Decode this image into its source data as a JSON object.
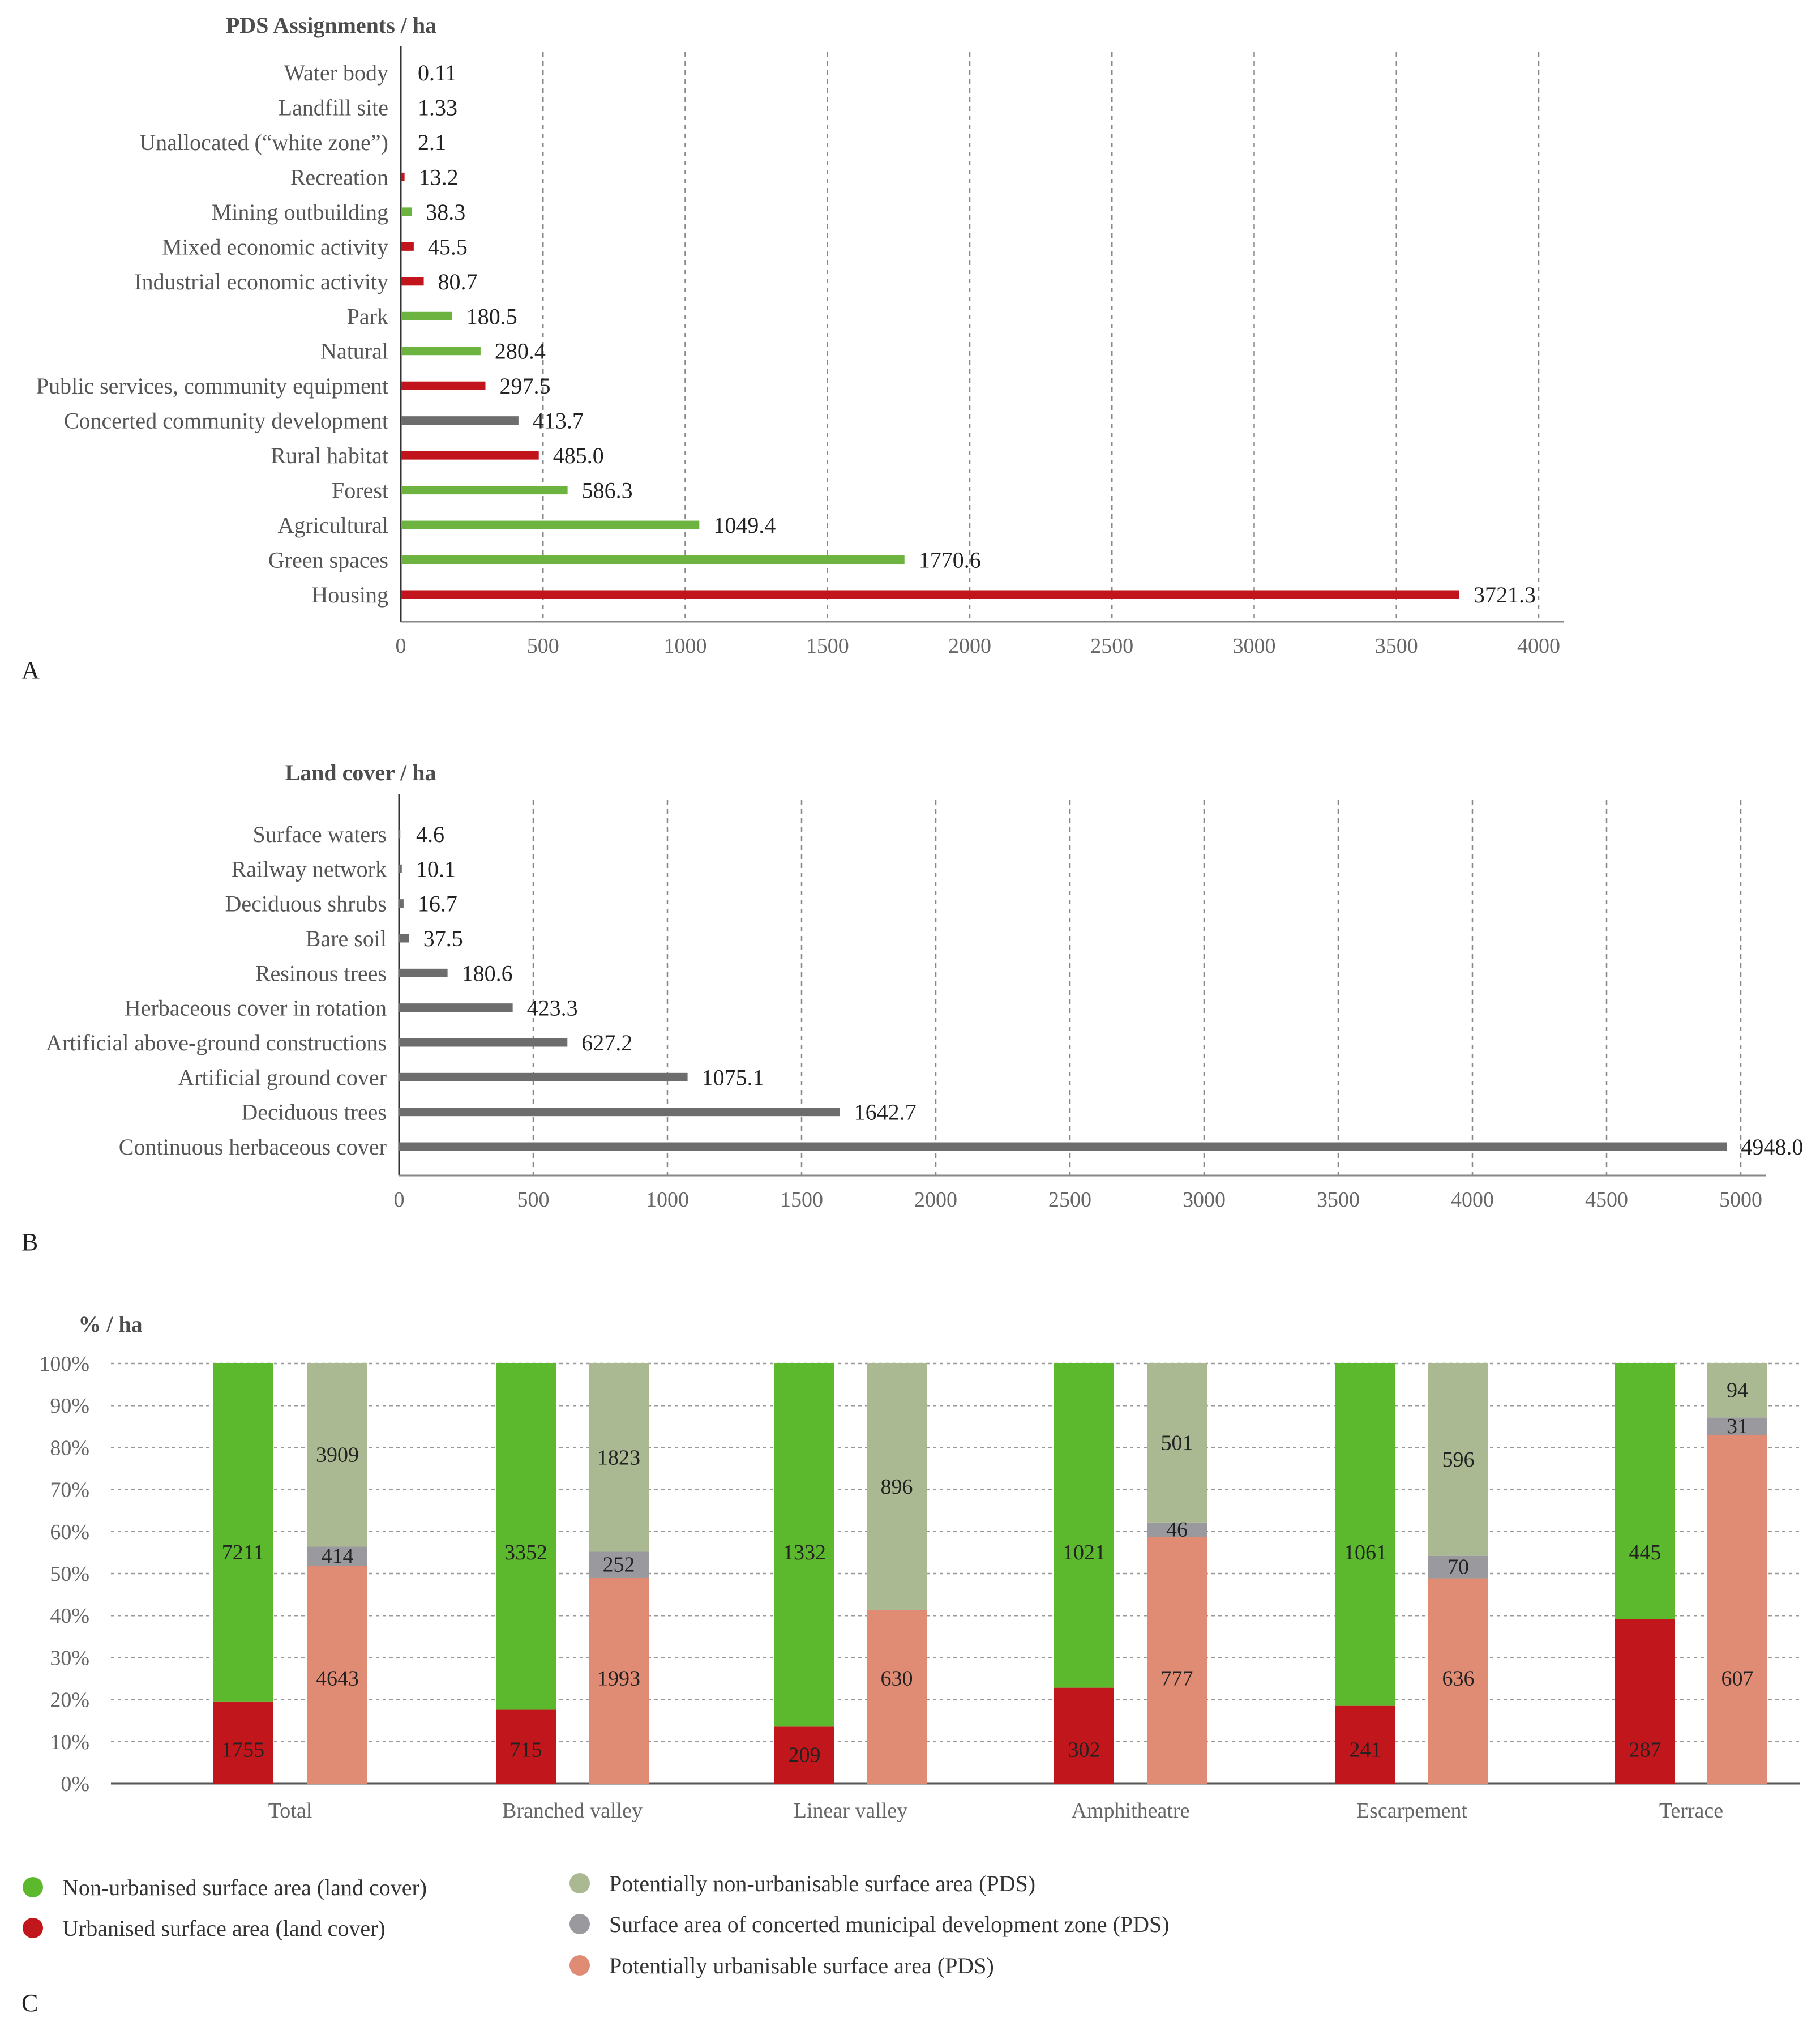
{
  "chart_data": [
    {
      "type": "bar",
      "orientation": "horizontal",
      "panel": "A",
      "title": "PDS Assignments / ha",
      "xlim": [
        0,
        4000
      ],
      "xticks": [
        "0",
        "500",
        "1000",
        "1500",
        "2000",
        "2500",
        "3000",
        "3500",
        "4000"
      ],
      "grid": "vertical dashed",
      "categories": [
        "Water body",
        "Landfill site",
        "Unallocated (“white zone”)",
        "Recreation",
        "Mining outbuilding",
        "Mixed economic activity",
        "Industrial economic activity",
        "Park",
        "Natural",
        "Public services, community equipment",
        "Concerted community development",
        "Rural habitat",
        "Forest",
        "Agricultural",
        "Green spaces",
        "Housing"
      ],
      "values": [
        0.11,
        1.33,
        2.1,
        13.2,
        38.3,
        45.5,
        80.7,
        180.5,
        280.4,
        297.5,
        413.7,
        485.0,
        586.3,
        1049.4,
        1770.6,
        3721.3
      ],
      "value_labels": [
        "0.11",
        "1.33",
        "2.1",
        "13.2",
        "38.3",
        "45.5",
        "80.7",
        "180.5",
        "280.4",
        "297.5",
        "413.7",
        "485.0",
        "586.3",
        "1049.4",
        "1770.6",
        "3721.3"
      ],
      "colors": [
        "#444444",
        "#444444",
        "#444444",
        "#c1141d",
        "#6db33f",
        "#c1141d",
        "#c1141d",
        "#6db33f",
        "#6db33f",
        "#c1141d",
        "#6d6d6d",
        "#c1141d",
        "#6db33f",
        "#6db33f",
        "#6db33f",
        "#c1141d"
      ]
    },
    {
      "type": "bar",
      "orientation": "horizontal",
      "panel": "B",
      "title": "Land cover / ha",
      "xlim": [
        0,
        5000
      ],
      "xticks": [
        "0",
        "500",
        "1000",
        "1500",
        "2000",
        "2500",
        "3000",
        "3500",
        "4000",
        "4500",
        "5000"
      ],
      "grid": "vertical dashed",
      "categories": [
        "Surface waters",
        "Railway network",
        "Deciduous shrubs",
        "Bare soil",
        "Resinous trees",
        "Herbaceous cover in rotation",
        "Artificial above-ground constructions",
        "Artificial ground cover",
        "Deciduous trees",
        "Continuous herbaceous cover"
      ],
      "values": [
        4.6,
        10.1,
        16.7,
        37.5,
        180.6,
        423.3,
        627.2,
        1075.1,
        1642.7,
        4948.0
      ],
      "value_labels": [
        "4.6",
        "10.1",
        "16.7",
        "37.5",
        "180.6",
        "423.3",
        "627.2",
        "1075.1",
        "1642.7",
        "4948.0"
      ],
      "color": "#6d6d6d"
    },
    {
      "type": "bar",
      "stacking": "percent",
      "panel": "C",
      "title": "% / ha",
      "ylim": [
        0,
        100
      ],
      "yticks": [
        "0%",
        "10%",
        "20%",
        "30%",
        "40%",
        "50%",
        "60%",
        "70%",
        "80%",
        "90%",
        "100%"
      ],
      "grid": "horizontal dashed",
      "categories": [
        "Total",
        "Branched valley",
        "Linear valley",
        "Amphitheatre",
        "Escarpement",
        "Terrace"
      ],
      "land_cover": {
        "urbanised": [
          1755,
          715,
          209,
          302,
          241,
          287
        ],
        "non_urbanised": [
          7211,
          3352,
          1332,
          1021,
          1061,
          445
        ]
      },
      "pds": {
        "potentially_urbanisable": [
          4643,
          1993,
          630,
          777,
          636,
          607
        ],
        "concerted_zone": [
          414,
          252,
          null,
          46,
          70,
          31
        ],
        "potentially_non_urbanisable": [
          3909,
          1823,
          896,
          501,
          596,
          94
        ]
      },
      "colors": {
        "non_urbanised": "#5cb82d",
        "urbanised": "#c0161c",
        "potentially_non_urbanisable": "#aab991",
        "concerted_zone": "#9a9a9e",
        "potentially_urbanisable": "#e08b74"
      },
      "legend": [
        {
          "key": "non_urbanised",
          "label": "Non-urbanised surface area (land cover)"
        },
        {
          "key": "urbanised",
          "label": "Urbanised surface area (land cover)"
        },
        {
          "key": "potentially_non_urbanisable",
          "label": "Potentially non-urbanisable surface area (PDS)"
        },
        {
          "key": "concerted_zone",
          "label": "Surface area of concerted municipal development zone (PDS)"
        },
        {
          "key": "potentially_urbanisable",
          "label": "Potentially urbanisable surface area (PDS)"
        }
      ]
    }
  ]
}
